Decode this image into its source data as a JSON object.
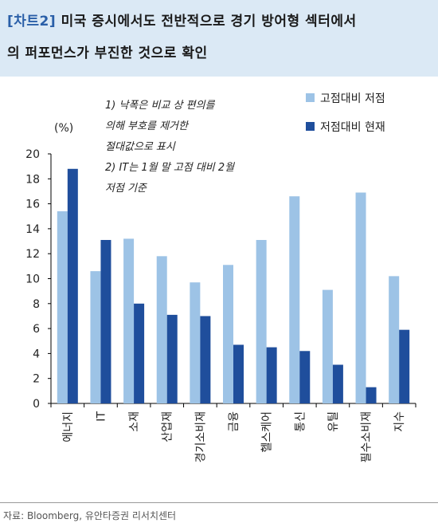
{
  "header": {
    "tag": "[차트2]",
    "title_line1": "미국 증시에서도 전반적으로 경기 방어형 섹터에서",
    "title_line2": "의 퍼포먼스가 부진한 것으로 확인"
  },
  "source": "자료: Bloomberg, 유안타증권 리서치센터",
  "chart_data": {
    "type": "bar",
    "ylabel": "(%)",
    "ylim": [
      0,
      20
    ],
    "yticks": [
      0,
      2,
      4,
      6,
      8,
      10,
      12,
      14,
      16,
      18,
      20
    ],
    "categories": [
      "에너지",
      "IT",
      "소재",
      "산업재",
      "경기소비재",
      "금융",
      "헬스케어",
      "통신",
      "유틸",
      "필수소비재",
      "지수"
    ],
    "series": [
      {
        "name": "고점대비 저점",
        "color": "#9dc3e6",
        "values": [
          15.4,
          10.6,
          13.2,
          11.8,
          9.7,
          11.1,
          13.1,
          16.6,
          9.1,
          16.9,
          10.2
        ]
      },
      {
        "name": "저점대비 현재",
        "color": "#1f4e9c",
        "values": [
          18.8,
          13.1,
          8.0,
          7.1,
          7.0,
          4.7,
          4.5,
          4.2,
          3.1,
          1.3,
          5.9
        ]
      }
    ],
    "legend_position": "top-right",
    "grid": false,
    "notes": [
      "1) 낙폭은 비교 상 편의를",
      "의해 부호를 제거한",
      "절대값으로 표시",
      "2) IT는 1월 말 고점 대비 2월",
      "저점 기준"
    ]
  }
}
